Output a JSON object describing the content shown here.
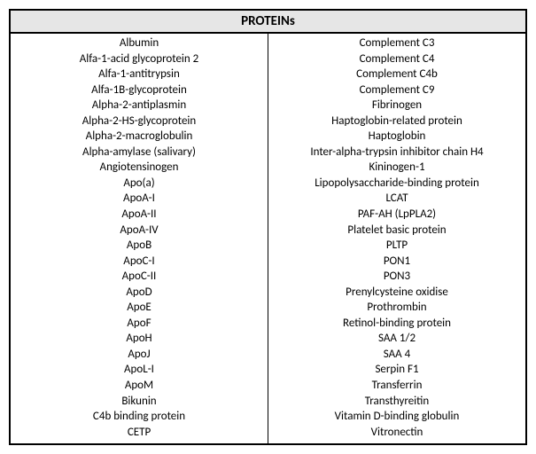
{
  "header": "PROTEINs",
  "left": [
    "Albumin",
    "Alfa-1-acid glycoprotein 2",
    "Alfa-1-antitrypsin",
    "Alfa-1B-glycoprotein",
    "Alpha-2-antiplasmin",
    "Alpha-2-HS-glycoprotein",
    "Alpha-2-macroglobulin",
    "Alpha-amylase (salivary)",
    "Angiotensinogen",
    "Apo(a)",
    "ApoA-I",
    "ApoA-II",
    "ApoA-IV",
    "ApoB",
    "ApoC-I",
    "ApoC-II",
    "ApoD",
    "ApoE",
    "ApoF",
    "ApoH",
    "ApoJ",
    "ApoL-I",
    "ApoM",
    "Bikunin",
    "C4b binding protein",
    "CETP"
  ],
  "right": [
    "Complement C3",
    "Complement C4",
    "Complement C4b",
    "Complement C9",
    "Fibrinogen",
    "Haptoglobin-related protein",
    "Haptoglobin",
    "Inter-alpha-trypsin inhibitor chain H4",
    "Kininogen-1",
    "Lipopolysaccharide-binding protein",
    "LCAT",
    "PAF-AH (LpPLA2)",
    "Platelet basic protein",
    "PLTP",
    "PON1",
    "PON3",
    "Prenylcysteine oxidise",
    "Prothrombin",
    "Retinol-binding protein",
    "SAA 1/2",
    "SAA 4",
    "Serpin F1",
    "Transferrin",
    "Transthyreitin",
    "Vitamin D-binding globulin",
    "Vitronectin"
  ]
}
